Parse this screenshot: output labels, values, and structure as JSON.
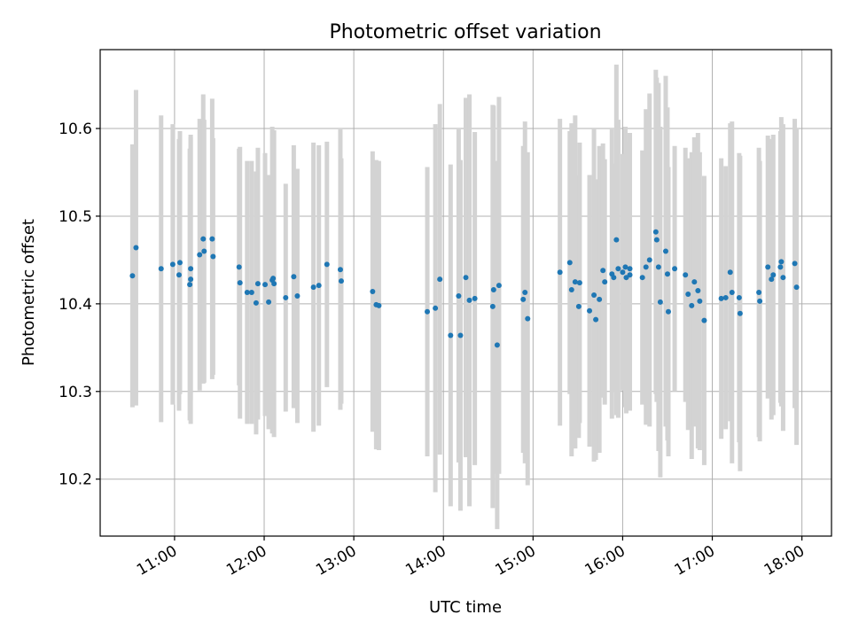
{
  "chart_data": {
    "type": "scatter",
    "title": "Photometric offset variation",
    "xlabel": "UTC time",
    "ylabel": "Photometric offset",
    "x_unit": "hour of day (UTC)",
    "xlim": [
      10.17,
      18.33
    ],
    "ylim": [
      10.135,
      10.69
    ],
    "x_ticks": [
      11,
      12,
      13,
      14,
      15,
      16,
      17,
      18
    ],
    "x_tick_labels": [
      "11:00",
      "12:00",
      "13:00",
      "14:00",
      "15:00",
      "16:00",
      "17:00",
      "18:00"
    ],
    "y_ticks": [
      10.2,
      10.3,
      10.4,
      10.5,
      10.6
    ],
    "y_tick_labels": [
      "10.2",
      "10.3",
      "10.4",
      "10.5",
      "10.6"
    ],
    "grid": true,
    "colors": {
      "points": "#1f77b4",
      "error_bars": "#d3d3d3",
      "grid": "#b0b0b0"
    },
    "series": [
      {
        "x": [
          10.53,
          10.57,
          10.85,
          10.98,
          11.05,
          11.06,
          11.17,
          11.18,
          11.18,
          11.28,
          11.32,
          11.33,
          11.42,
          11.43,
          11.72,
          11.73,
          11.81,
          11.86,
          11.91,
          11.93,
          12.01,
          12.05,
          12.09,
          12.1,
          12.11,
          12.24,
          12.33,
          12.37,
          12.55,
          12.61,
          12.7,
          12.85,
          12.86,
          13.21,
          13.25,
          13.28,
          13.82,
          13.91,
          13.96,
          14.08,
          14.17,
          14.19,
          14.25,
          14.29,
          14.35,
          14.55,
          14.56,
          14.6,
          14.62,
          14.89,
          14.91,
          14.94,
          15.3,
          15.41,
          15.43,
          15.47,
          15.51,
          15.52,
          15.63,
          15.68,
          15.7,
          15.74,
          15.78,
          15.8,
          15.88,
          15.9,
          15.93,
          15.95,
          16.0,
          16.03,
          16.04,
          16.08,
          16.08,
          16.22,
          16.26,
          16.3,
          16.37,
          16.38,
          16.4,
          16.42,
          16.48,
          16.5,
          16.51,
          16.58,
          16.7,
          16.73,
          16.77,
          16.8,
          16.84,
          16.86,
          16.91,
          17.1,
          17.15,
          17.2,
          17.22,
          17.3,
          17.31,
          17.52,
          17.53,
          17.62,
          17.66,
          17.68,
          17.76,
          17.77,
          17.79,
          17.92,
          17.94
        ],
        "y": [
          10.432,
          10.464,
          10.44,
          10.445,
          10.433,
          10.447,
          10.422,
          10.428,
          10.44,
          10.456,
          10.474,
          10.46,
          10.474,
          10.454,
          10.442,
          10.424,
          10.413,
          10.413,
          10.401,
          10.423,
          10.422,
          10.402,
          10.427,
          10.429,
          10.423,
          10.407,
          10.431,
          10.409,
          10.419,
          10.421,
          10.445,
          10.439,
          10.426,
          10.414,
          10.399,
          10.398,
          10.391,
          10.395,
          10.428,
          10.364,
          10.409,
          10.364,
          10.43,
          10.404,
          10.406,
          10.397,
          10.416,
          10.353,
          10.421,
          10.405,
          10.413,
          10.383,
          10.436,
          10.447,
          10.416,
          10.425,
          10.397,
          10.424,
          10.392,
          10.41,
          10.382,
          10.405,
          10.438,
          10.425,
          10.434,
          10.43,
          10.473,
          10.44,
          10.436,
          10.442,
          10.43,
          10.44,
          10.433,
          10.43,
          10.442,
          10.45,
          10.482,
          10.473,
          10.442,
          10.402,
          10.46,
          10.434,
          10.391,
          10.44,
          10.433,
          10.411,
          10.398,
          10.425,
          10.415,
          10.403,
          10.381,
          10.406,
          10.407,
          10.436,
          10.413,
          10.407,
          10.389,
          10.413,
          10.403,
          10.442,
          10.428,
          10.433,
          10.442,
          10.448,
          10.43,
          10.446,
          10.419
        ],
        "err": [
          0.15,
          0.18,
          0.175,
          0.16,
          0.155,
          0.15,
          0.155,
          0.165,
          0.15,
          0.155,
          0.165,
          0.15,
          0.16,
          0.135,
          0.135,
          0.155,
          0.15,
          0.15,
          0.15,
          0.155,
          0.15,
          0.145,
          0.175,
          0.15,
          0.175,
          0.13,
          0.15,
          0.145,
          0.165,
          0.16,
          0.14,
          0.16,
          0.14,
          0.16,
          0.165,
          0.165,
          0.165,
          0.21,
          0.2,
          0.195,
          0.19,
          0.2,
          0.205,
          0.235,
          0.19,
          0.23,
          0.21,
          0.21,
          0.215,
          0.175,
          0.195,
          0.19,
          0.175,
          0.15,
          0.19,
          0.19,
          0.15,
          0.16,
          0.155,
          0.19,
          0.16,
          0.175,
          0.145,
          0.14,
          0.165,
          0.13,
          0.2,
          0.17,
          0.135,
          0.16,
          0.155,
          0.155,
          0.155,
          0.145,
          0.18,
          0.19,
          0.185,
          0.185,
          0.21,
          0.2,
          0.2,
          0.19,
          0.165,
          0.14,
          0.145,
          0.155,
          0.175,
          0.165,
          0.18,
          0.17,
          0.165,
          0.16,
          0.15,
          0.17,
          0.195,
          0.165,
          0.18,
          0.165,
          0.16,
          0.15,
          0.16,
          0.16,
          0.155,
          0.165,
          0.175,
          0.165,
          0.18
        ]
      }
    ]
  }
}
